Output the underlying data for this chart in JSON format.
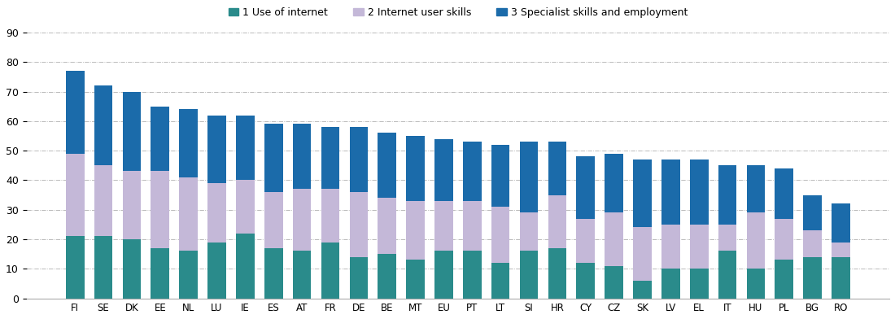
{
  "categories": [
    "FI",
    "SE",
    "DK",
    "EE",
    "NL",
    "LU",
    "IE",
    "ES",
    "AT",
    "FR",
    "DE",
    "BE",
    "MT",
    "EU",
    "PT",
    "LT",
    "SI",
    "HR",
    "CY",
    "CZ",
    "SK",
    "LV",
    "EL",
    "IT",
    "HU",
    "PL",
    "BG",
    "RO"
  ],
  "use_of_internet": [
    21,
    21,
    20,
    17,
    16,
    19,
    22,
    17,
    16,
    19,
    14,
    15,
    13,
    16,
    16,
    12,
    16,
    17,
    12,
    11,
    6,
    10,
    10,
    16,
    10,
    13,
    14,
    14
  ],
  "internet_user_skills": [
    28,
    24,
    23,
    26,
    25,
    20,
    18,
    19,
    21,
    18,
    22,
    19,
    20,
    17,
    17,
    19,
    13,
    18,
    15,
    18,
    18,
    15,
    15,
    9,
    19,
    14,
    9,
    5
  ],
  "specialist_skills": [
    28,
    27,
    27,
    22,
    23,
    23,
    22,
    23,
    22,
    21,
    22,
    22,
    22,
    21,
    20,
    21,
    24,
    18,
    21,
    20,
    23,
    22,
    22,
    20,
    16,
    17,
    12,
    13
  ],
  "color_use_of_internet": "#2A8B8B",
  "color_internet_user": "#C4B8D8",
  "color_specialist": "#1B6BAA",
  "legend_labels": [
    "1 Use of internet",
    "2 Internet user skills",
    "3 Specialist skills and employment"
  ],
  "ylim": [
    0,
    90
  ],
  "yticks": [
    0,
    10,
    20,
    30,
    40,
    50,
    60,
    70,
    80,
    90
  ],
  "background_color": "#ffffff",
  "grid_color": "#b0b0b0"
}
